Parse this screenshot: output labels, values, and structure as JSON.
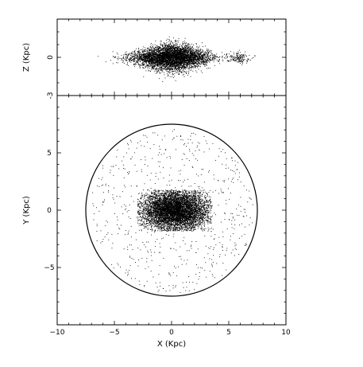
{
  "chart_data": [
    {
      "type": "scatter",
      "panel": "top",
      "xlim": [
        -10,
        10
      ],
      "ylim": [
        -3,
        3
      ],
      "ylabel": "Z (Kpc)",
      "xlabel": "",
      "yticks": [
        -3,
        0
      ],
      "xticks": [
        -10,
        -5,
        0,
        5,
        10
      ],
      "grid": false,
      "point_color": "#000000",
      "distribution": {
        "main_component": {
          "x_center": 0,
          "x_sigma": 1.6,
          "x_range": [
            -7,
            7
          ],
          "y_center": 0,
          "y_sigma": 0.55
        },
        "outer_clump": {
          "x_center": 5.8,
          "x_sigma": 0.5,
          "y_center": 0,
          "y_sigma": 0.2
        }
      }
    },
    {
      "type": "scatter",
      "panel": "bottom",
      "xlim": [
        -10,
        10
      ],
      "ylim": [
        -10,
        10
      ],
      "xlabel": "X (Kpc)",
      "ylabel": "Y (Kpc)",
      "xticks": [
        -10,
        -5,
        0,
        5,
        10
      ],
      "yticks": [
        -5,
        0,
        5
      ],
      "grid": false,
      "point_color": "#000000",
      "circle": {
        "x_center": 0,
        "y_center": 0,
        "radius": 7.5
      },
      "distribution": {
        "core": {
          "x_center": 0.3,
          "y_center": 0,
          "x_sigma": 1.5,
          "y_sigma": 0.9,
          "x_range": [
            -3,
            3.5
          ],
          "y_range": [
            -1.8,
            1.8
          ]
        },
        "disk": {
          "radius_max": 7.5,
          "sparse": true
        }
      }
    }
  ]
}
